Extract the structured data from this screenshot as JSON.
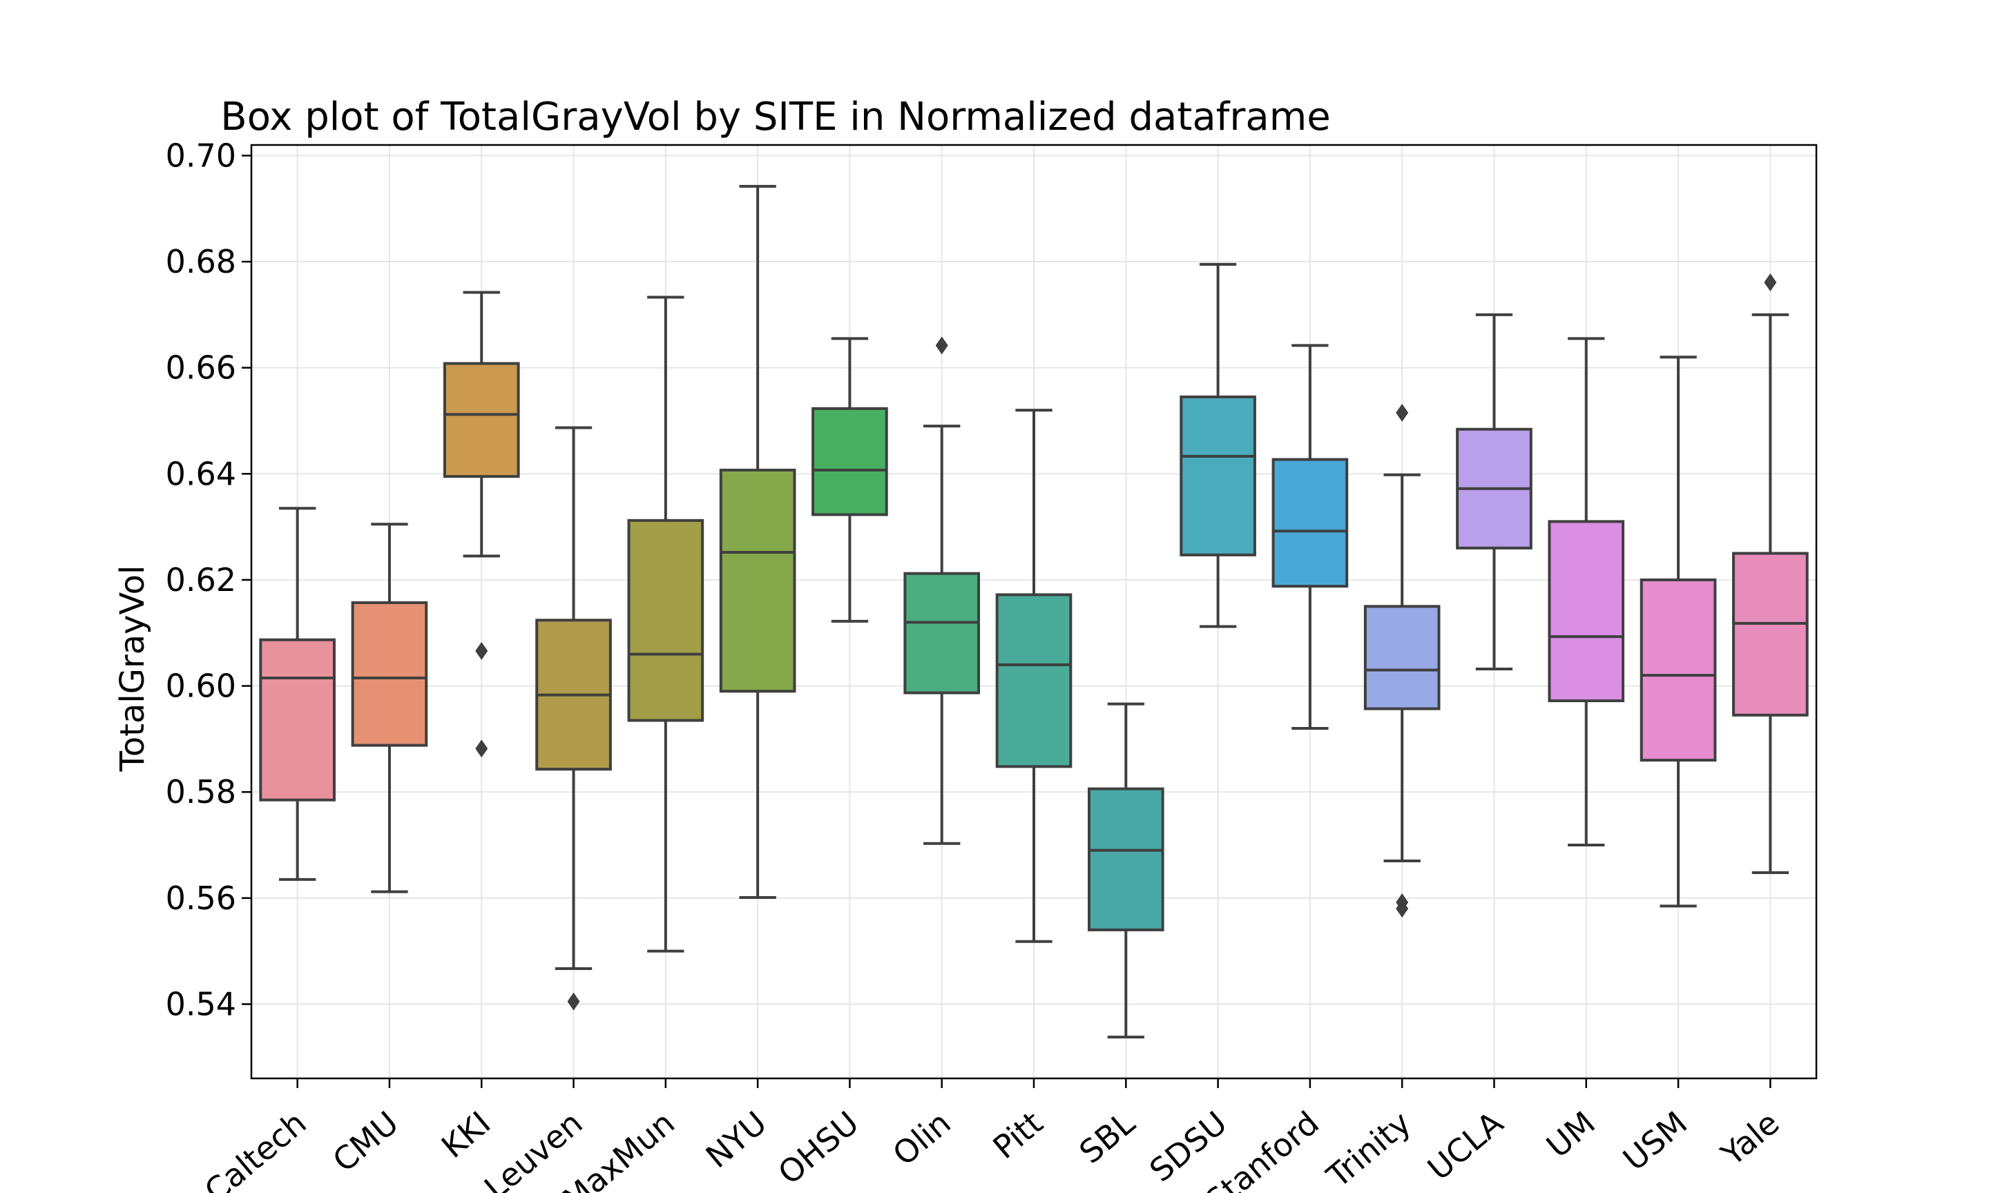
{
  "chart_data": {
    "type": "box",
    "title": "Box plot of TotalGrayVol by SITE in Normalized dataframe",
    "xlabel": "",
    "ylabel": "TotalGrayVol",
    "ylim": [
      0.526,
      0.702
    ],
    "yticks": [
      "0.54",
      "0.56",
      "0.58",
      "0.60",
      "0.62",
      "0.64",
      "0.66",
      "0.68",
      "0.70"
    ],
    "grid": true,
    "categories": [
      "Caltech",
      "CMU",
      "KKI",
      "Leuven",
      "MaxMun",
      "NYU",
      "OHSU",
      "Olin",
      "Pitt",
      "SBL",
      "SDSU",
      "Stanford",
      "Trinity",
      "UCLA",
      "UM",
      "USM",
      "Yale"
    ],
    "boxes": [
      {
        "site": "Caltech",
        "color": "#e8929e",
        "whislo": 0.5635,
        "q1": 0.5785,
        "med": 0.6015,
        "q3": 0.6087,
        "whishi": 0.6335,
        "fliers": []
      },
      {
        "site": "CMU",
        "color": "#e69174",
        "whislo": 0.5612,
        "q1": 0.5888,
        "med": 0.6015,
        "q3": 0.6157,
        "whishi": 0.6305,
        "fliers": []
      },
      {
        "site": "KKI",
        "color": "#cc9a4e",
        "whislo": 0.6245,
        "q1": 0.6395,
        "med": 0.6512,
        "q3": 0.6608,
        "whishi": 0.6742,
        "fliers": [
          0.6066,
          0.5882
        ]
      },
      {
        "site": "Leuven",
        "color": "#b09c4a",
        "whislo": 0.5467,
        "q1": 0.5843,
        "med": 0.5983,
        "q3": 0.6124,
        "whishi": 0.6487,
        "fliers": [
          0.5405
        ]
      },
      {
        "site": "MaxMun",
        "color": "#a19e47",
        "whislo": 0.55,
        "q1": 0.5935,
        "med": 0.606,
        "q3": 0.6312,
        "whishi": 0.6733,
        "fliers": []
      },
      {
        "site": "NYU",
        "color": "#85a84a",
        "whislo": 0.5601,
        "q1": 0.599,
        "med": 0.6252,
        "q3": 0.6407,
        "whishi": 0.6942,
        "fliers": []
      },
      {
        "site": "OHSU",
        "color": "#48b061",
        "whislo": 0.6122,
        "q1": 0.6323,
        "med": 0.6407,
        "q3": 0.6523,
        "whishi": 0.6655,
        "fliers": []
      },
      {
        "site": "Olin",
        "color": "#4aae82",
        "whislo": 0.5703,
        "q1": 0.5987,
        "med": 0.612,
        "q3": 0.6212,
        "whishi": 0.649,
        "fliers": [
          0.6642
        ]
      },
      {
        "site": "Pitt",
        "color": "#4aab98",
        "whislo": 0.5518,
        "q1": 0.5848,
        "med": 0.604,
        "q3": 0.6172,
        "whishi": 0.652,
        "fliers": []
      },
      {
        "site": "SBL",
        "color": "#48a9a8",
        "whislo": 0.5338,
        "q1": 0.554,
        "med": 0.569,
        "q3": 0.5806,
        "whishi": 0.5966,
        "fliers": []
      },
      {
        "site": "SDSU",
        "color": "#4aabbd",
        "whislo": 0.6112,
        "q1": 0.6247,
        "med": 0.6433,
        "q3": 0.6545,
        "whishi": 0.6795,
        "fliers": []
      },
      {
        "site": "Stanford",
        "color": "#4aa8d8",
        "whislo": 0.592,
        "q1": 0.6188,
        "med": 0.6292,
        "q3": 0.6427,
        "whishi": 0.6642,
        "fliers": []
      },
      {
        "site": "Trinity",
        "color": "#97aae6",
        "whislo": 0.567,
        "q1": 0.5957,
        "med": 0.603,
        "q3": 0.615,
        "whishi": 0.6398,
        "fliers": [
          0.6515,
          0.5592,
          0.558
        ]
      },
      {
        "site": "UCLA",
        "color": "#b9a0ea",
        "whislo": 0.6032,
        "q1": 0.626,
        "med": 0.6372,
        "q3": 0.6484,
        "whishi": 0.67,
        "fliers": []
      },
      {
        "site": "UM",
        "color": "#da8ee4",
        "whislo": 0.57,
        "q1": 0.5972,
        "med": 0.6093,
        "q3": 0.631,
        "whishi": 0.6655,
        "fliers": []
      },
      {
        "site": "USM",
        "color": "#e68dcf",
        "whislo": 0.5585,
        "q1": 0.586,
        "med": 0.602,
        "q3": 0.62,
        "whishi": 0.662,
        "fliers": []
      },
      {
        "site": "Yale",
        "color": "#e88dba",
        "whislo": 0.5648,
        "q1": 0.5945,
        "med": 0.6118,
        "q3": 0.625,
        "whishi": 0.67,
        "fliers": [
          0.6761
        ]
      }
    ]
  }
}
